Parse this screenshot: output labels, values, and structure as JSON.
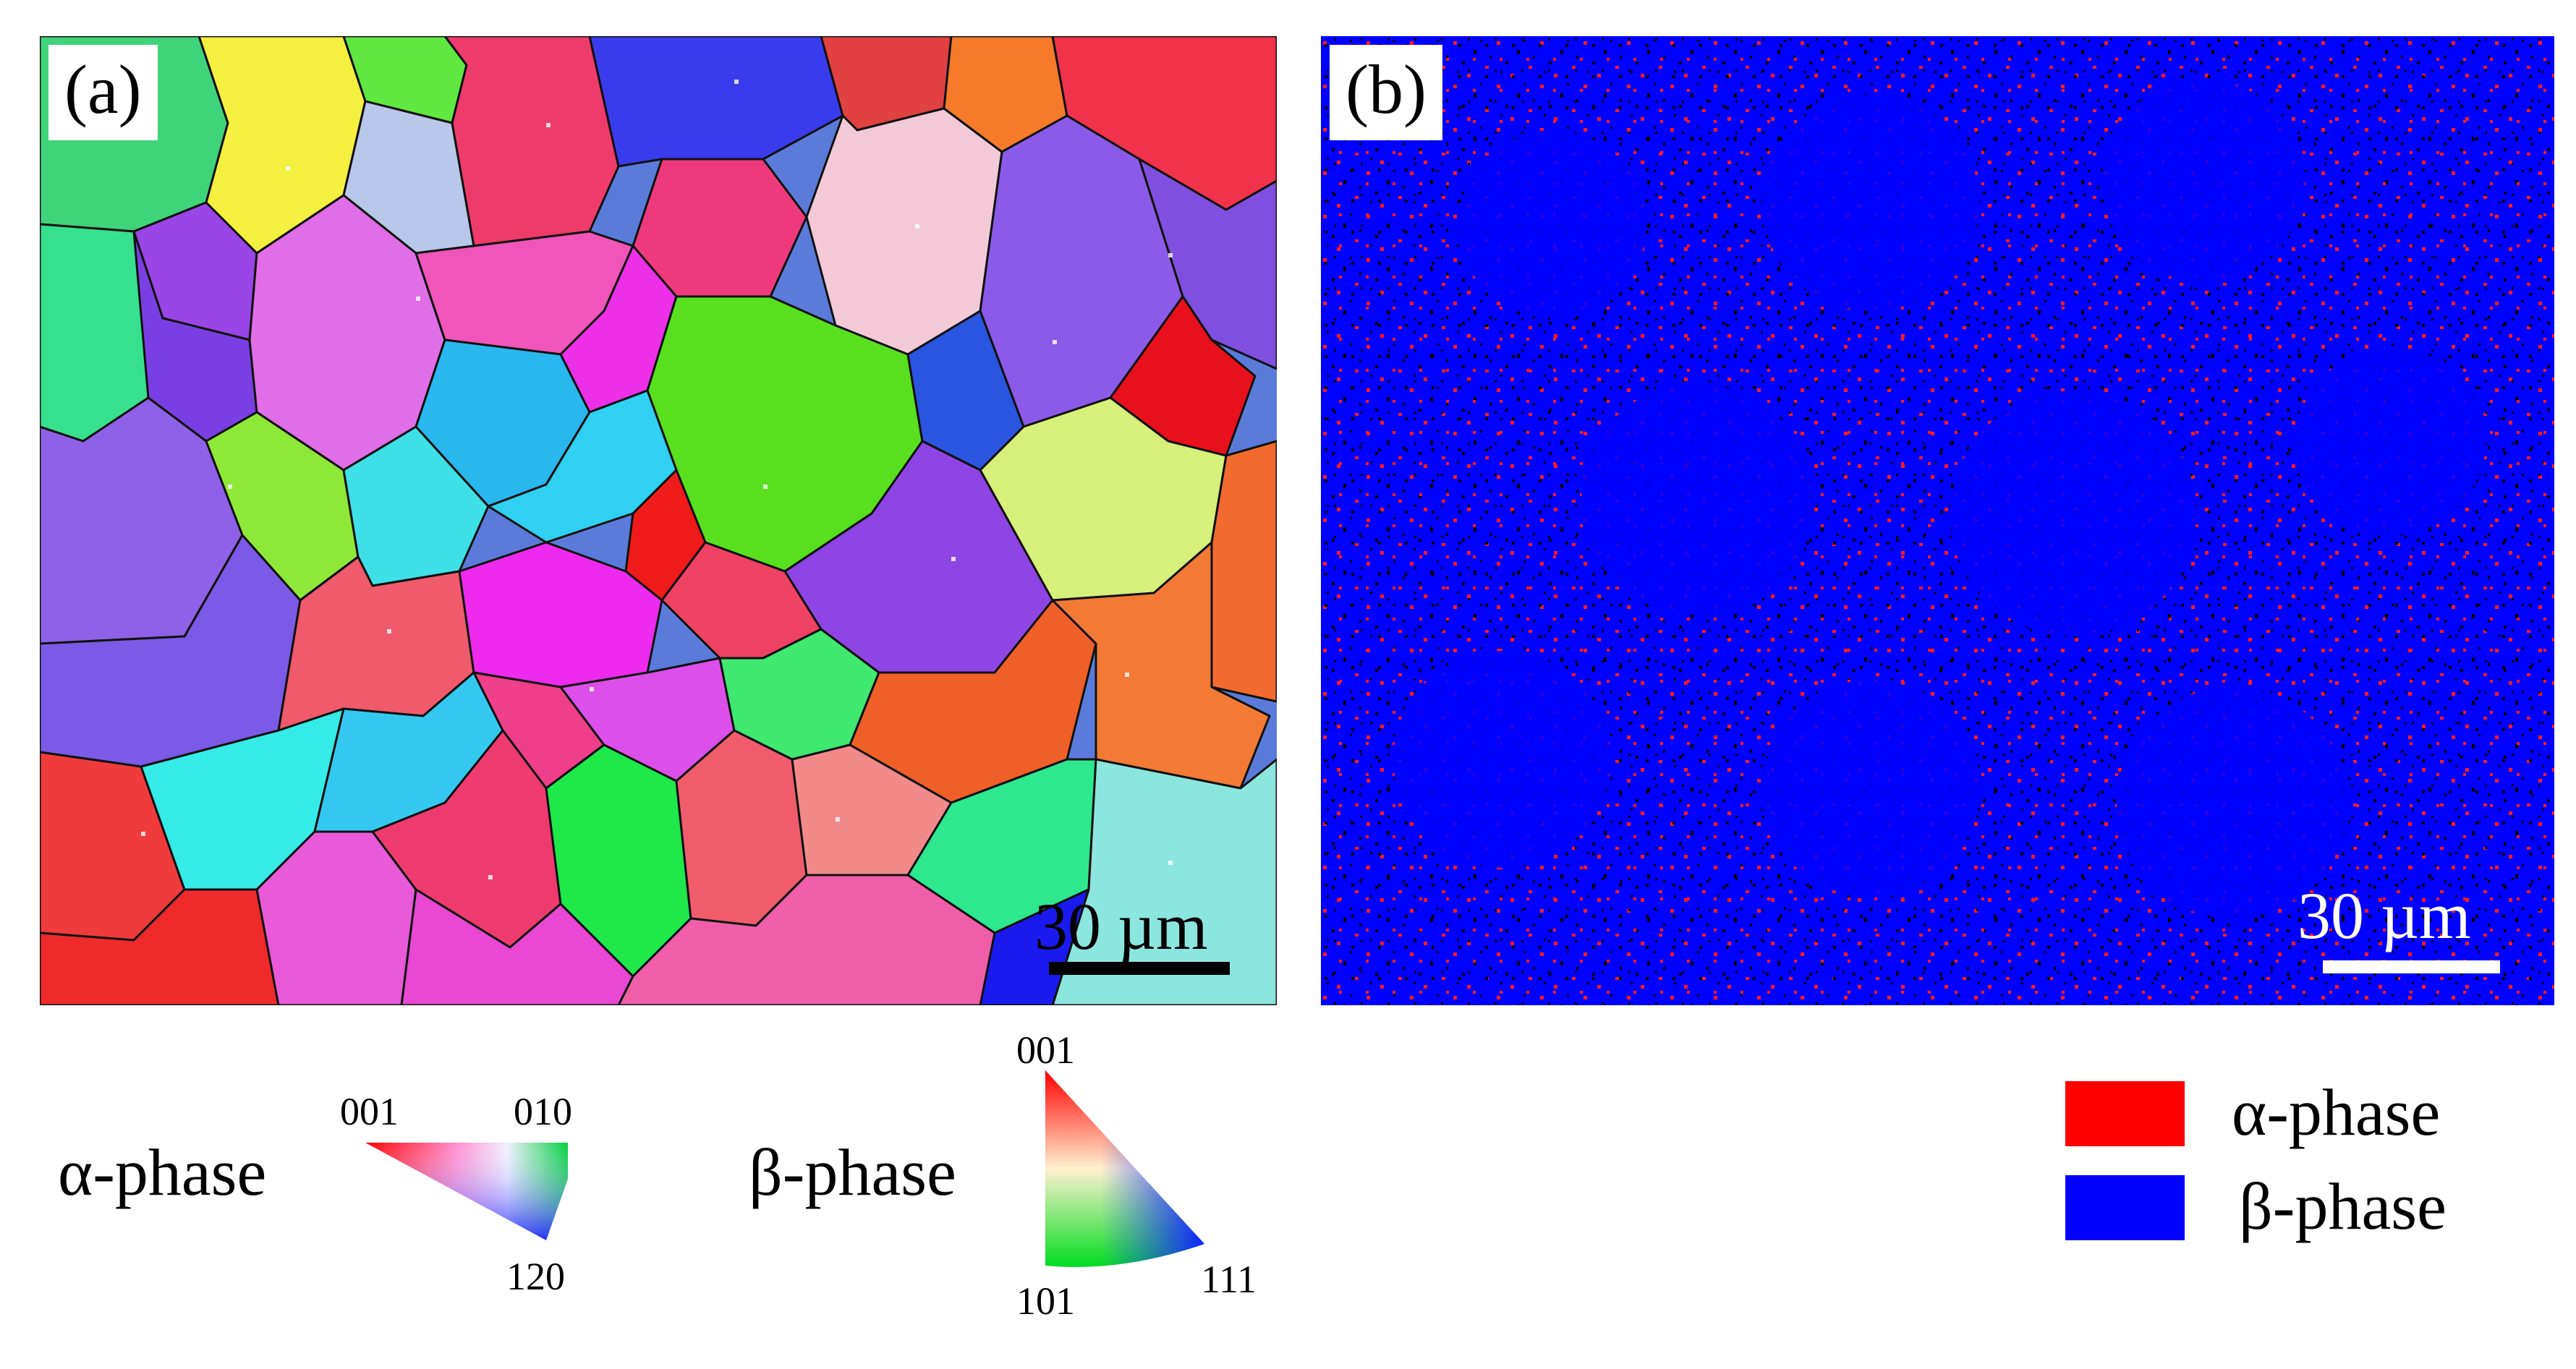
{
  "panels": {
    "a": {
      "label": "(a)",
      "scale_bar": "30 µm"
    },
    "b": {
      "label": "(b)",
      "scale_bar": "30 µm"
    }
  },
  "ipf_legend": {
    "alpha": {
      "label": "α-phase",
      "poles": {
        "top_left": "001",
        "top_right": "010",
        "bottom": "120"
      }
    },
    "beta": {
      "label": "β-phase",
      "poles": {
        "top": "001",
        "bottom_left": "101",
        "bottom_right": "111"
      }
    }
  },
  "phase_legend": [
    {
      "label": "α-phase",
      "color": "#ff0000"
    },
    {
      "label": "β-phase",
      "color": "#0000ff"
    }
  ]
}
